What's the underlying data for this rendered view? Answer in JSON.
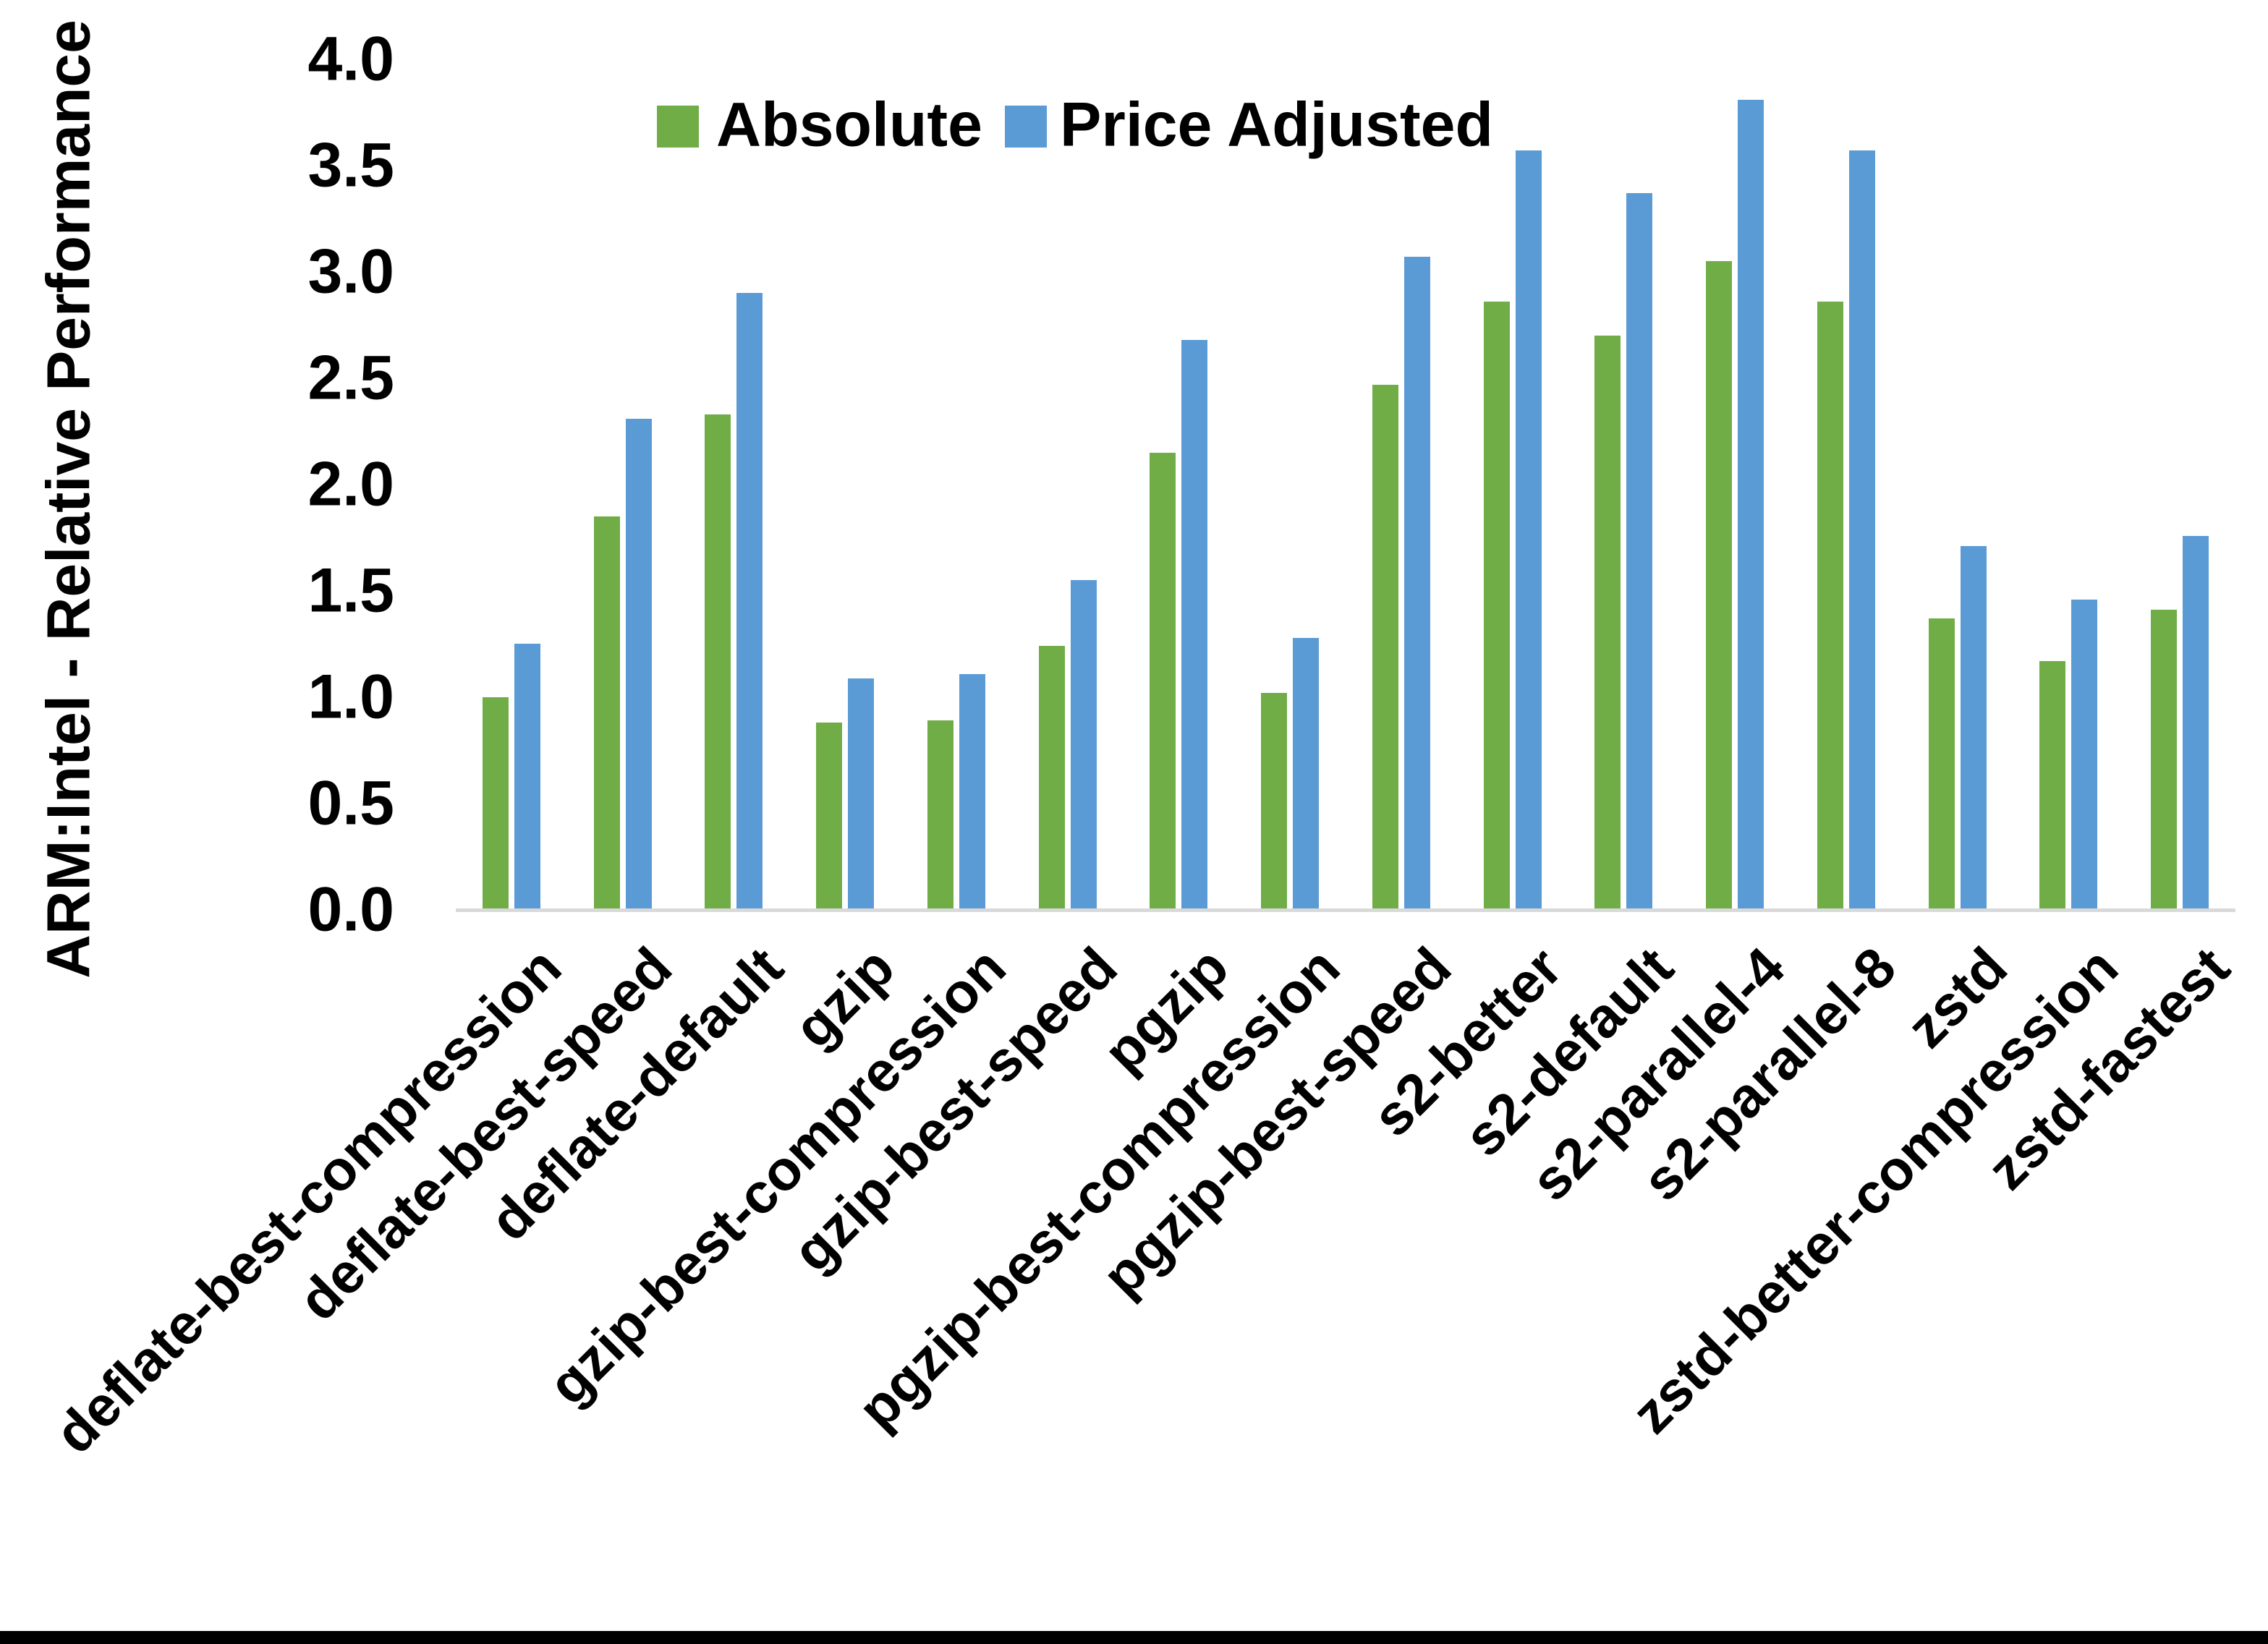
{
  "figure": {
    "y_axis_title": "ARM:Intel - Relative Performance",
    "colors": {
      "absolute": "#70AD47",
      "price_adjusted": "#5B9BD5",
      "axis_line": "#D9D9D9",
      "text": "#000000",
      "background": "#FFFFFF"
    }
  },
  "legend": {
    "items": [
      {
        "label": "Absolute",
        "color": "#70AD47"
      },
      {
        "label": "Price Adjusted",
        "color": "#5B9BD5"
      }
    ]
  },
  "chart_data": {
    "type": "bar",
    "title": "",
    "xlabel": "",
    "ylabel": "ARM:Intel - Relative Performance",
    "ylim": [
      0.0,
      4.0
    ],
    "ytick_step": 0.5,
    "ytick_labels": [
      "0.0",
      "0.5",
      "1.0",
      "1.5",
      "2.0",
      "2.5",
      "3.0",
      "3.5",
      "4.0"
    ],
    "grid": false,
    "legend_position": "top-center",
    "x_label_rotation_deg": 45,
    "categories": [
      "deflate-best-compression",
      "deflate-best-speed",
      "deflate-default",
      "gzip",
      "gzip-best-compression",
      "gzip-best-speed",
      "pgzip",
      "pgzip-best-compression",
      "pgzip-best-speed",
      "s2-better",
      "s2-default",
      "s2-parallel-4",
      "s2-parallel-8",
      "zstd",
      "zstd-better-compression",
      "zstd-fastest"
    ],
    "series": [
      {
        "name": "Absolute",
        "color": "#70AD47",
        "values": [
          1.0,
          1.85,
          2.33,
          0.88,
          0.89,
          1.24,
          2.15,
          1.02,
          2.47,
          2.86,
          2.7,
          3.05,
          2.86,
          1.37,
          1.17,
          1.41
        ]
      },
      {
        "name": "Price Adjusted",
        "color": "#5B9BD5",
        "values": [
          1.25,
          2.31,
          2.9,
          1.09,
          1.11,
          1.55,
          2.68,
          1.28,
          3.07,
          3.57,
          3.37,
          3.81,
          3.57,
          1.71,
          1.46,
          1.76
        ]
      }
    ]
  }
}
